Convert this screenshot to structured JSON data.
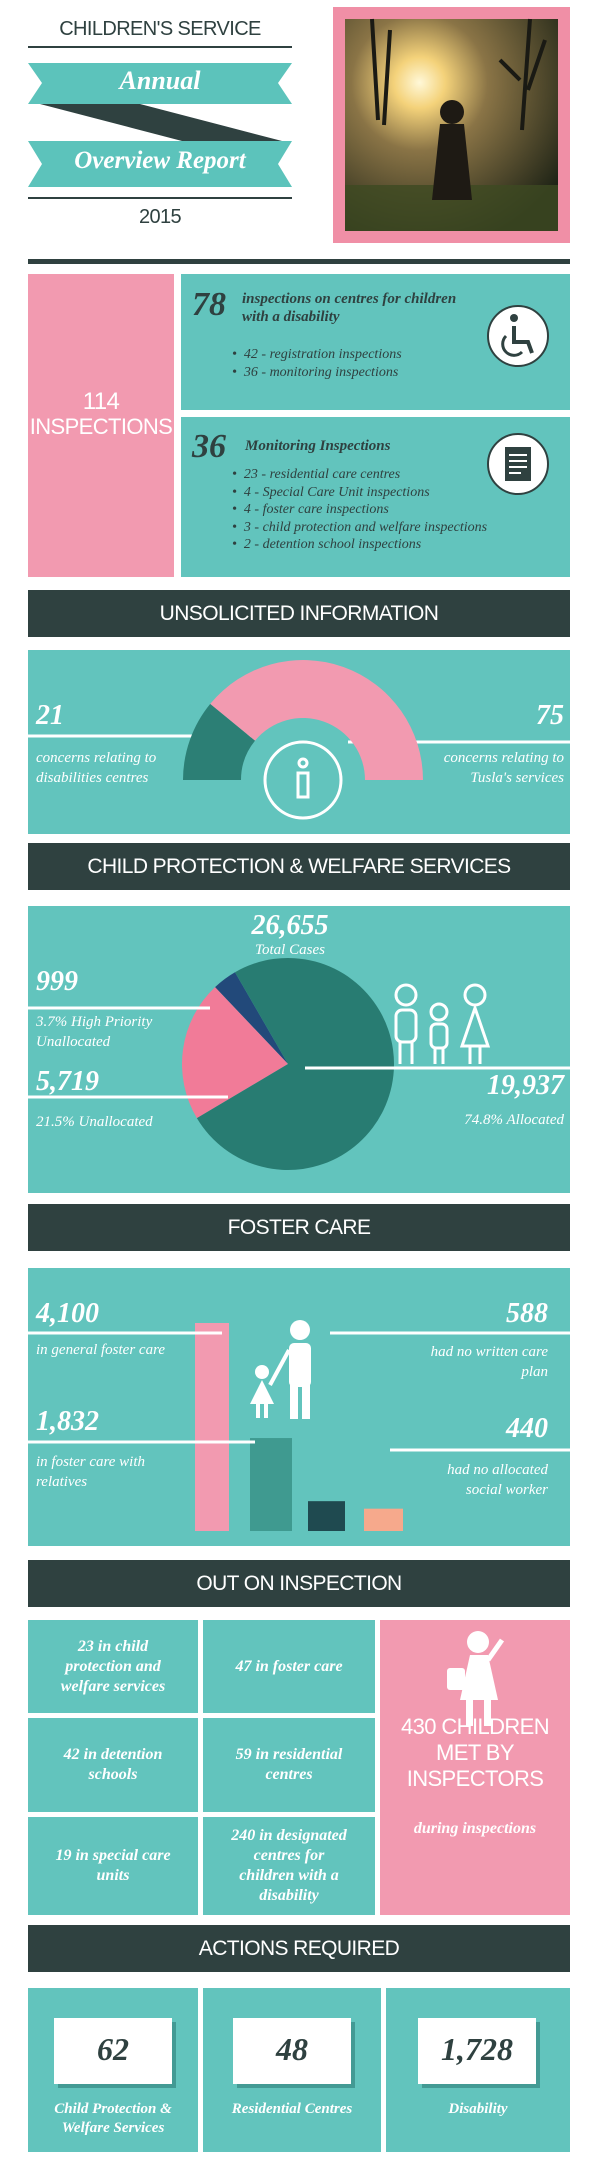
{
  "header": {
    "title": "CHILDREN'S SERVICE",
    "ribbon_top": "Annual",
    "ribbon_bottom": "Overview Report",
    "year": "2015"
  },
  "inspections": {
    "total": "114",
    "total_label": "INSPECTIONS",
    "blocks": [
      {
        "number": "78",
        "heading": "inspections on centres for children with a disability",
        "items": [
          "42 - registration inspections",
          "36 - monitoring inspections"
        ]
      },
      {
        "number": "36",
        "heading": "Monitoring Inspections",
        "items": [
          "23 - residential care centres",
          "4 - Special Care Unit inspections",
          "4 - foster care inspections",
          "3 - child protection and welfare inspections",
          "2 - detention school inspections"
        ]
      }
    ]
  },
  "chart_data": [
    {
      "type": "half-donut",
      "title": "UNSOLICITED INFORMATION",
      "categories": [
        "concerns relating to disabilities centres",
        "concerns relating to Tusla's services"
      ],
      "values": [
        21,
        75
      ],
      "colors": [
        "#2c7f75",
        "#f29ab0"
      ]
    },
    {
      "type": "pie",
      "title": "CHILD PROTECTION & WELFARE SERVICES",
      "total": "26,655",
      "total_caption": "Total Cases",
      "categories": [
        "3.7% High Priority Unallocated",
        "21.5% Unallocated",
        "74.8% Allocated"
      ],
      "values": [
        999,
        5719,
        19937
      ],
      "value_labels": [
        "999",
        "5,719",
        "19,937"
      ],
      "colors": [
        "#22497a",
        "#f17b98",
        "#287c72"
      ]
    },
    {
      "type": "bar",
      "title": "FOSTER CARE",
      "categories": [
        "in general foster care",
        "in foster care with relatives",
        "had no written care plan",
        "had no allocated social worker"
      ],
      "values": [
        4100,
        1832,
        588,
        440
      ],
      "value_labels": [
        "4,100",
        "1,832",
        "588",
        "440"
      ],
      "colors": [
        "#f29ab0",
        "#3f9a90",
        "#1f4a50",
        "#f6a98c"
      ]
    }
  ],
  "inspection_visits": {
    "title": "OUT ON INSPECTION",
    "cells": [
      "23 in child protection and welfare services",
      "47 in foster care",
      "42 in detention schools",
      "59 in residential centres",
      "19 in special care units",
      "240 in designated centres for children with a disability"
    ],
    "highlight": "430 CHILDREN MET BY INSPECTORS",
    "highlight_caption": "during inspections"
  },
  "actions": {
    "title": "ACTIONS REQUIRED",
    "items": [
      {
        "value": "62",
        "label": "Child Protection & Welfare Services"
      },
      {
        "value": "48",
        "label": "Residential Centres"
      },
      {
        "value": "1,728",
        "label": "Disability"
      }
    ]
  }
}
